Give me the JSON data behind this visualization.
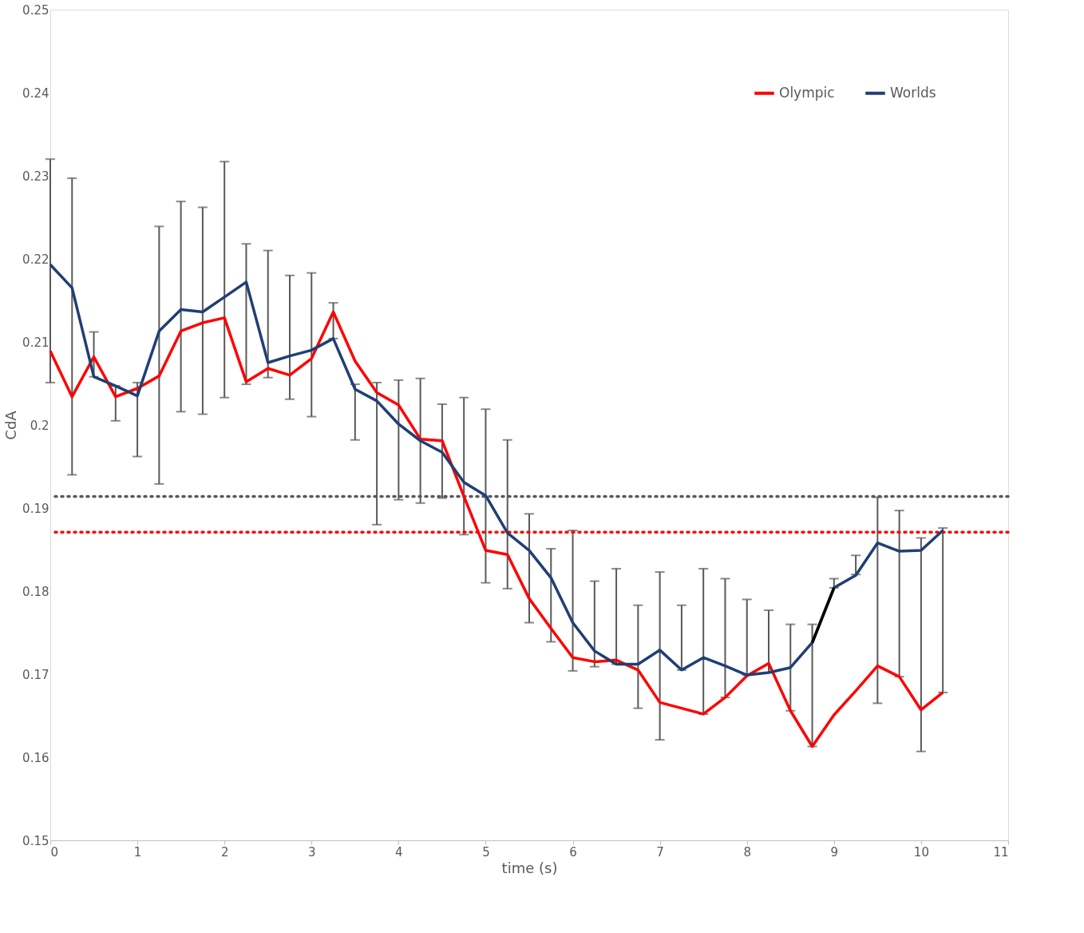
{
  "chart_data": {
    "type": "line",
    "xlabel": "time (s)",
    "ylabel": "CdA",
    "x": [
      0,
      0.25,
      0.5,
      0.75,
      1,
      1.25,
      1.5,
      1.75,
      2,
      2.25,
      2.5,
      2.75,
      3,
      3.25,
      3.5,
      3.75,
      4,
      4.25,
      4.5,
      4.75,
      5,
      5.25,
      5.5,
      5.75,
      6,
      6.25,
      6.5,
      6.75,
      7,
      7.25,
      7.5,
      7.75,
      8,
      8.25,
      8.5,
      8.75,
      9,
      9.25,
      9.5,
      9.75,
      10,
      10.25
    ],
    "series": [
      {
        "name": "Olympic",
        "color": "#ff0000",
        "values": [
          0.2089,
          0.2034,
          0.2082,
          0.2034,
          0.2044,
          0.2059,
          0.2113,
          0.2123,
          0.2129,
          0.2052,
          0.2068,
          0.206,
          0.208,
          0.2136,
          0.2077,
          0.2039,
          0.2024,
          0.1983,
          0.1981,
          0.1914,
          0.1849,
          0.1844,
          0.1791,
          0.1755,
          0.172,
          0.1715,
          0.1717,
          0.1705,
          0.1666,
          0.1659,
          0.1652,
          0.1672,
          0.1698,
          0.1713,
          0.1656,
          0.1613,
          0.1651,
          0.168,
          0.171,
          0.1697,
          0.1657,
          0.1678
        ]
      },
      {
        "name": "Worlds",
        "color": "#203f73",
        "values": [
          0.2193,
          0.2165,
          0.2058,
          0.2047,
          0.2035,
          0.2113,
          0.2139,
          0.2136,
          0.2154,
          0.2172,
          0.2075,
          0.2083,
          0.209,
          0.2104,
          0.2043,
          0.2029,
          0.2001,
          0.1981,
          0.1967,
          0.1931,
          0.1915,
          0.187,
          0.1849,
          0.1816,
          0.1762,
          0.1728,
          0.1712,
          0.1712,
          0.1729,
          0.1705,
          0.172,
          0.171,
          0.1699,
          0.1702,
          0.1708,
          0.1738,
          0.1804,
          0.1819,
          0.1858,
          0.1848,
          0.1849,
          0.1873
        ],
        "errors": [
          [
            0.2051,
            0.232
          ],
          [
            0.194,
            0.2297
          ],
          [
            0.2058,
            0.2112
          ],
          [
            0.2005,
            0.2047
          ],
          [
            0.1962,
            0.2051
          ],
          [
            0.1929,
            0.2239
          ],
          [
            0.2016,
            0.2269
          ],
          [
            0.2013,
            0.2262
          ],
          [
            0.2033,
            0.2317
          ],
          [
            0.2049,
            0.2218
          ],
          [
            0.2057,
            0.221
          ],
          [
            0.2031,
            0.218
          ],
          [
            0.201,
            0.2183
          ],
          [
            0.2104,
            0.2147
          ],
          [
            0.1982,
            0.2049
          ],
          [
            0.188,
            0.2051
          ],
          [
            0.191,
            0.2054
          ],
          [
            0.1906,
            0.2056
          ],
          [
            0.1912,
            0.2025
          ],
          [
            0.1868,
            0.2033
          ],
          [
            0.181,
            0.2019
          ],
          [
            0.1803,
            0.1982
          ],
          [
            0.1762,
            0.1893
          ],
          [
            0.1739,
            0.1851
          ],
          [
            0.1704,
            0.1873
          ],
          [
            0.1709,
            0.1812
          ],
          [
            0.1712,
            0.1827
          ],
          [
            0.1659,
            0.1783
          ],
          [
            0.1621,
            0.1823
          ],
          [
            0.1705,
            0.1783
          ],
          [
            0.1652,
            0.1827
          ],
          [
            0.1672,
            0.1815
          ],
          [
            0.1699,
            0.179
          ],
          [
            0.1702,
            0.1777
          ],
          [
            0.1656,
            0.176
          ],
          [
            0.1613,
            0.176
          ],
          [
            0.1804,
            0.1815
          ],
          [
            0.182,
            0.1843
          ],
          [
            0.1665,
            0.1913
          ],
          [
            0.1697,
            0.1897
          ],
          [
            0.1607,
            0.1864
          ],
          [
            0.1678,
            0.1876
          ]
        ]
      },
      {
        "color": "#000000",
        "x": [
          8.75,
          9
        ],
        "values": [
          0.1738,
          0.1804
        ]
      }
    ],
    "ref_lines": [
      {
        "axis": "y",
        "value": 0.1914,
        "color": "#595959",
        "line_style": "dotted"
      },
      {
        "axis": "y",
        "value": 0.1871,
        "color": "#ff0000",
        "line_style": "dotted"
      }
    ],
    "xlim": [
      0,
      11
    ],
    "xticks": [
      0,
      1,
      2,
      3,
      4,
      5,
      6,
      7,
      8,
      9,
      10,
      11
    ],
    "ylim": [
      0.15,
      0.25
    ],
    "yticks": [
      0.15,
      0.16,
      0.17,
      0.18,
      0.19,
      0.2,
      0.21,
      0.22,
      0.23,
      0.24,
      0.25
    ],
    "grid": false,
    "legend": "top right",
    "marker": "none",
    "line_style": "solid"
  }
}
